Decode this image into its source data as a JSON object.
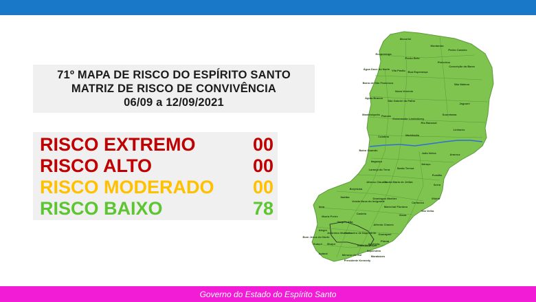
{
  "header": {
    "title_lines": [
      "71º MAPA DE RISCO DO ESPÍRITO SANTO",
      "MATRIZ DE RISCO DE CONVIVÊNCIA",
      "06/09 a 12/09/2021"
    ]
  },
  "risk_levels": [
    {
      "label": "RISCO EXTREMO",
      "value": "00",
      "color": "#c00000"
    },
    {
      "label": "RISCO ALTO",
      "value": "00",
      "color": "#c00000"
    },
    {
      "label": "RISCO MODERADO",
      "value": "00",
      "color": "#ffc000"
    },
    {
      "label": "RISCO BAIXO",
      "value": "78",
      "color": "#5cc531"
    }
  ],
  "map": {
    "fill_color": "#7ec44f",
    "border_color": "#5a9a3a",
    "river_color": "#2b6fd6",
    "municipalities": [
      "Mucurici",
      "Montanha",
      "Pedro Canário",
      "Ecoporanga",
      "Ponto Belo",
      "Pinheiros",
      "Conceição da Barra",
      "Água Doce do Norte",
      "Vila Pavão",
      "Boa Esperança",
      "São Mateus",
      "Barra de São Francisco",
      "Nova Venécia",
      "Águia Branca",
      "São Gabriel da Palha",
      "Jaguaré",
      "Mantenópolis",
      "Pancas",
      "Sooretama",
      "Governador Lindenberg",
      "Rio Bananal",
      "Linhares",
      "Colatina",
      "Marilândia",
      "Baixo Guandu",
      "João Neiva",
      "Aracruz",
      "Itaguaçu",
      "Laranja da Terra",
      "Santa Teresa",
      "Ibiraçu",
      "Fundão",
      "Afonso Cláudio",
      "Santa Maria de Jetibá",
      "Serra",
      "Brejetuba",
      "Ibatiba",
      "Domingos Martins",
      "Cariacica",
      "Vitória",
      "Vila Velha",
      "Venda Nova do Imigrante",
      "Marechal Floriano",
      "Viana",
      "Iúna",
      "Castelo",
      "Vargem Alta",
      "Alfredo Chaves",
      "Guarapari",
      "Muniz Freire",
      "Alegre",
      "Cachoeiro de Itapemirim",
      "Anchieta",
      "Piúma",
      "Guaçuí",
      "Jerônimo Monteiro",
      "Itapemirim",
      "Muqui",
      "Mimoso do Sul",
      "Atílio Vivácqua",
      "Presidente Kennedy",
      "Marataízes",
      "Apiacá",
      "Bom Jesus do Norte"
    ]
  },
  "footer": {
    "text": "Governo do Estado do Espírito Santo"
  },
  "colors": {
    "top_bar": "#1a78c8",
    "bottom_bar": "#f21cd6",
    "panel_bg": "#f0f0f0"
  }
}
